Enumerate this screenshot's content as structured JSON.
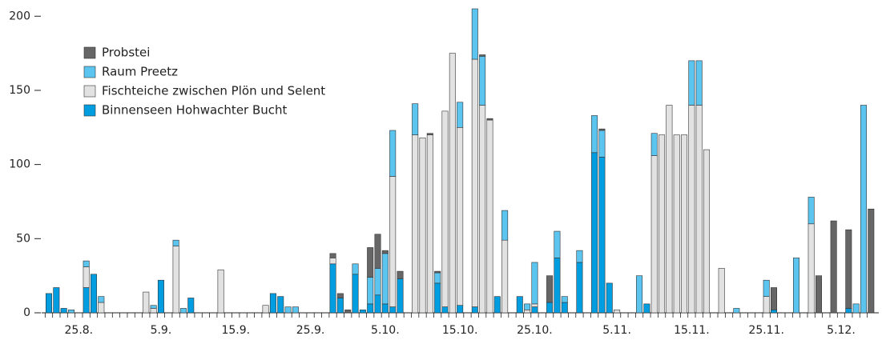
{
  "chart_data": {
    "type": "stacked_bar",
    "categories": [
      null,
      null,
      null,
      null,
      "25.8.",
      null,
      null,
      null,
      null,
      null,
      null,
      null,
      null,
      null,
      null,
      "5.9.",
      null,
      null,
      null,
      null,
      null,
      null,
      null,
      null,
      null,
      "15.9.",
      null,
      null,
      null,
      null,
      null,
      null,
      null,
      null,
      null,
      "25.9.",
      null,
      null,
      null,
      null,
      null,
      null,
      null,
      null,
      null,
      "5.10.",
      null,
      null,
      null,
      null,
      null,
      null,
      null,
      null,
      null,
      "15.10.",
      null,
      null,
      null,
      null,
      null,
      null,
      null,
      null,
      null,
      "25.10.",
      null,
      null,
      null,
      null,
      null,
      null,
      null,
      null,
      null,
      null,
      "5.11.",
      null,
      null,
      null,
      null,
      null,
      null,
      null,
      null,
      null,
      "15.11.",
      null,
      null,
      null,
      null,
      null,
      null,
      null,
      null,
      null,
      "25.11.",
      null,
      null,
      null,
      null,
      null,
      null,
      null,
      null,
      null,
      "5.12.",
      null,
      null,
      null,
      null
    ],
    "series": [
      {
        "name": "Binnenseen Hohwachter Bucht",
        "color": "#009ee0",
        "values": [
          13,
          17,
          3,
          0,
          0,
          17,
          26,
          0,
          0,
          0,
          0,
          0,
          0,
          0,
          0,
          22,
          0,
          0,
          0,
          10,
          0,
          0,
          0,
          0,
          0,
          0,
          0,
          0,
          0,
          0,
          13,
          11,
          0,
          0,
          0,
          0,
          0,
          0,
          33,
          10,
          0,
          26,
          2,
          6,
          12,
          6,
          4,
          23,
          0,
          0,
          0,
          0,
          20,
          4,
          0,
          5,
          0,
          4,
          0,
          0,
          11,
          0,
          0,
          11,
          0,
          4,
          0,
          7,
          37,
          7,
          0,
          34,
          0,
          108,
          105,
          20,
          0,
          0,
          0,
          0,
          6,
          0,
          0,
          0,
          0,
          0,
          0,
          0,
          0,
          0,
          0,
          0,
          0,
          0,
          0,
          0,
          0,
          2,
          0,
          0,
          0,
          0,
          0,
          0,
          0,
          0,
          0,
          3,
          0,
          0,
          0
        ]
      },
      {
        "name": "Fischteiche zwischen Plön und Selent",
        "color": "#e2e2e2",
        "values": [
          0,
          0,
          0,
          0,
          0,
          14,
          0,
          7,
          0,
          0,
          0,
          0,
          0,
          14,
          3,
          0,
          0,
          45,
          0,
          0,
          0,
          0,
          0,
          29,
          0,
          0,
          0,
          0,
          0,
          5,
          0,
          0,
          0,
          0,
          0,
          0,
          0,
          0,
          4,
          0,
          0,
          0,
          0,
          0,
          0,
          0,
          88,
          0,
          0,
          120,
          118,
          120,
          0,
          132,
          175,
          120,
          0,
          167,
          140,
          130,
          0,
          49,
          0,
          0,
          2,
          2,
          0,
          0,
          0,
          0,
          0,
          0,
          0,
          0,
          0,
          0,
          2,
          0,
          0,
          0,
          0,
          106,
          120,
          140,
          120,
          120,
          140,
          140,
          110,
          0,
          30,
          0,
          0,
          0,
          0,
          0,
          11,
          0,
          0,
          0,
          0,
          0,
          60,
          0,
          0,
          0,
          0,
          0,
          0,
          0,
          0
        ]
      },
      {
        "name": "Raum Preetz",
        "color": "#5bc5f0",
        "values": [
          0,
          0,
          0,
          2,
          0,
          4,
          0,
          4,
          0,
          0,
          0,
          0,
          0,
          0,
          2,
          0,
          0,
          4,
          3,
          0,
          0,
          0,
          0,
          0,
          0,
          0,
          0,
          0,
          0,
          0,
          0,
          0,
          4,
          4,
          0,
          0,
          0,
          0,
          0,
          0,
          0,
          7,
          0,
          18,
          18,
          34,
          31,
          0,
          0,
          21,
          0,
          0,
          7,
          0,
          0,
          17,
          0,
          34,
          33,
          0,
          0,
          20,
          0,
          0,
          4,
          28,
          0,
          0,
          18,
          4,
          0,
          8,
          0,
          25,
          18,
          0,
          0,
          0,
          0,
          25,
          0,
          15,
          0,
          0,
          0,
          0,
          30,
          30,
          0,
          0,
          0,
          0,
          3,
          0,
          0,
          0,
          11,
          0,
          0,
          0,
          37,
          0,
          18,
          0,
          0,
          0,
          0,
          0,
          6,
          140,
          0
        ]
      },
      {
        "name": "Probstei",
        "color": "#666666",
        "values": [
          0,
          0,
          0,
          0,
          0,
          0,
          0,
          0,
          0,
          0,
          0,
          0,
          0,
          0,
          0,
          0,
          0,
          0,
          0,
          0,
          0,
          0,
          0,
          0,
          0,
          0,
          0,
          0,
          0,
          0,
          0,
          0,
          0,
          0,
          0,
          0,
          0,
          0,
          3,
          3,
          2,
          0,
          0,
          20,
          23,
          2,
          0,
          5,
          0,
          0,
          0,
          1,
          1,
          0,
          0,
          0,
          0,
          0,
          1,
          1,
          0,
          0,
          0,
          0,
          0,
          0,
          0,
          18,
          0,
          0,
          0,
          0,
          0,
          0,
          1,
          0,
          0,
          0,
          0,
          0,
          0,
          0,
          0,
          0,
          0,
          0,
          0,
          0,
          0,
          0,
          0,
          0,
          0,
          0,
          0,
          0,
          0,
          15,
          0,
          0,
          0,
          0,
          0,
          25,
          0,
          62,
          0,
          53,
          0,
          0,
          70
        ]
      }
    ],
    "ylim": [
      0,
      205
    ],
    "yticks": [
      0,
      50,
      100,
      150,
      200
    ],
    "legend": "upper left"
  }
}
